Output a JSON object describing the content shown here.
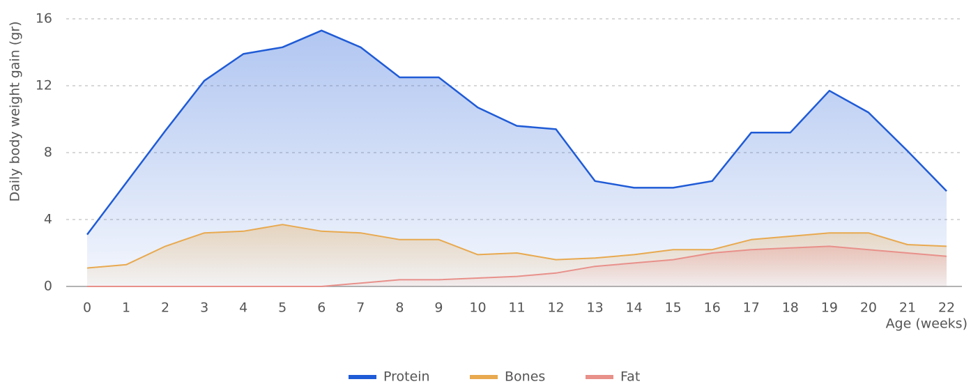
{
  "chart_data": {
    "type": "area",
    "y_label": "Daily body weight gain (gr)",
    "x_label": "Age (weeks)",
    "x": [
      0,
      1,
      2,
      3,
      4,
      5,
      6,
      7,
      8,
      9,
      10,
      11,
      12,
      13,
      14,
      15,
      16,
      17,
      18,
      19,
      20,
      21,
      22
    ],
    "xlim": [
      0,
      22
    ],
    "xticks": [
      0,
      1,
      2,
      3,
      4,
      5,
      6,
      7,
      8,
      9,
      10,
      11,
      12,
      13,
      14,
      15,
      16,
      17,
      18,
      19,
      20,
      21,
      22
    ],
    "ylim": [
      0,
      16
    ],
    "yticks": [
      0,
      4,
      8,
      12,
      16
    ],
    "grid": true,
    "legend": "bottom",
    "series": [
      {
        "name": "Protein",
        "color": "#1f5bd6",
        "values": [
          3.1,
          6.2,
          9.3,
          12.3,
          13.9,
          14.3,
          15.3,
          14.3,
          12.5,
          12.5,
          10.7,
          9.6,
          9.4,
          6.3,
          5.9,
          5.9,
          6.3,
          9.2,
          9.2,
          11.7,
          10.4,
          8.1,
          5.7
        ]
      },
      {
        "name": "Bones",
        "color": "#e8a94f",
        "values": [
          1.1,
          1.3,
          2.4,
          3.2,
          3.3,
          3.7,
          3.3,
          3.2,
          2.8,
          2.8,
          1.9,
          2.0,
          1.6,
          1.7,
          1.9,
          2.2,
          2.2,
          2.8,
          3.0,
          3.2,
          3.2,
          2.5,
          2.4
        ]
      },
      {
        "name": "Fat",
        "color": "#e8908a",
        "values": [
          0,
          0,
          0,
          0,
          0,
          0,
          0,
          0.2,
          0.4,
          0.4,
          0.5,
          0.6,
          0.8,
          1.2,
          1.4,
          1.6,
          2.0,
          2.2,
          2.3,
          2.4,
          2.2,
          2.0,
          1.8
        ]
      }
    ]
  }
}
